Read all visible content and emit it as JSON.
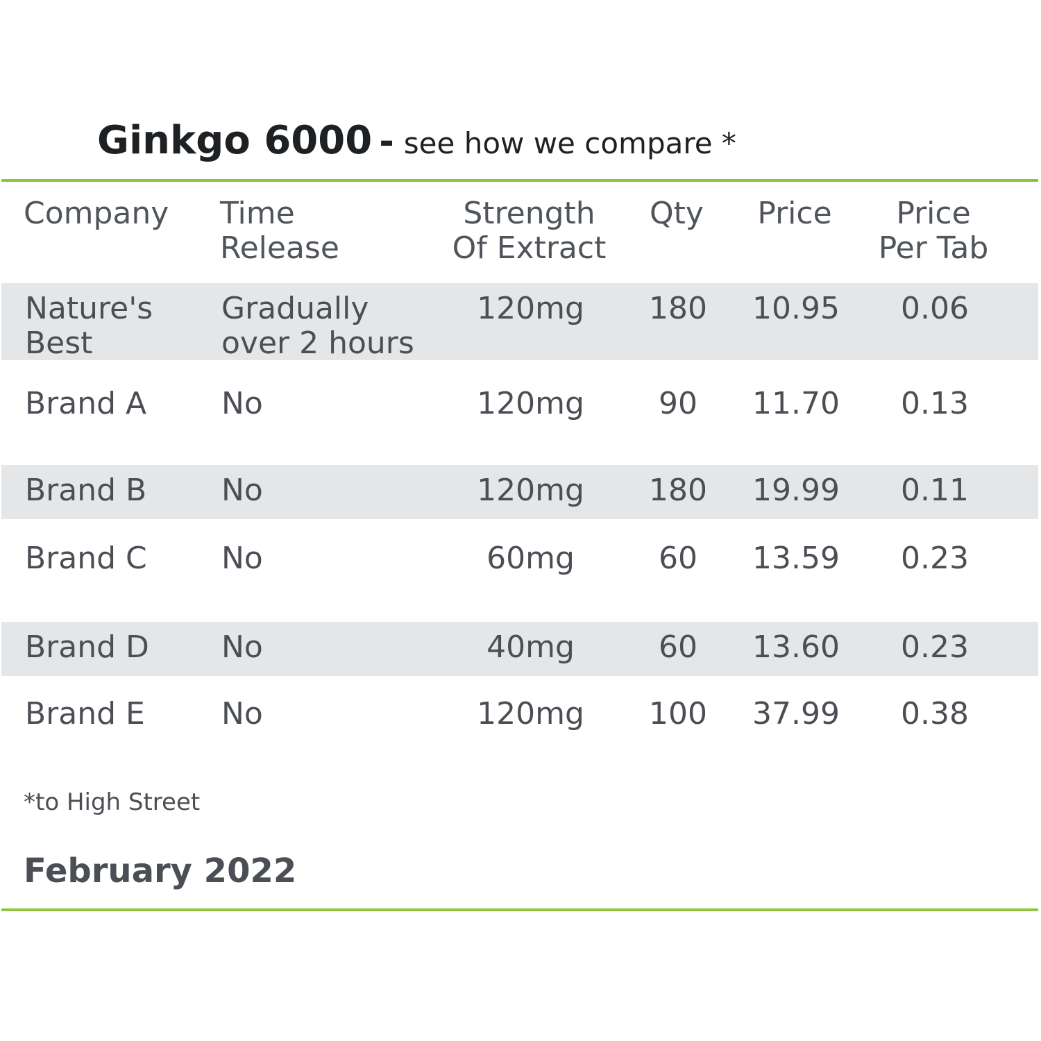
{
  "title": {
    "main": "Ginkgo 6000",
    "separator": "-",
    "subtitle": "see how we compare *"
  },
  "chart_data": {
    "type": "table",
    "columns": [
      "Company",
      "Time Release",
      "Strength Of Extract",
      "Qty",
      "Price",
      "Price Per Tab"
    ],
    "header_lines": [
      [
        "Company"
      ],
      [
        "Time",
        "Release"
      ],
      [
        "Strength",
        "Of Extract"
      ],
      [
        "Qty"
      ],
      [
        "Price"
      ],
      [
        "Price",
        "Per Tab"
      ]
    ],
    "rows": [
      {
        "company": [
          "Nature's",
          "Best"
        ],
        "release": [
          "Gradually",
          "over 2 hours"
        ],
        "strength": "120mg",
        "qty": "180",
        "price": "10.95",
        "ppt": "0.06"
      },
      {
        "company": [
          "Brand A"
        ],
        "release": [
          "No"
        ],
        "strength": "120mg",
        "qty": "90",
        "price": "11.70",
        "ppt": "0.13"
      },
      {
        "company": [
          "Brand B"
        ],
        "release": [
          "No"
        ],
        "strength": "120mg",
        "qty": "180",
        "price": "19.99",
        "ppt": "0.11"
      },
      {
        "company": [
          "Brand C"
        ],
        "release": [
          "No"
        ],
        "strength": "60mg",
        "qty": "60",
        "price": "13.59",
        "ppt": "0.23"
      },
      {
        "company": [
          "Brand D"
        ],
        "release": [
          "No"
        ],
        "strength": "40mg",
        "qty": "60",
        "price": "13.60",
        "ppt": "0.23"
      },
      {
        "company": [
          "Brand E"
        ],
        "release": [
          "No"
        ],
        "strength": "120mg",
        "qty": "100",
        "price": "37.99",
        "ppt": "0.38"
      }
    ],
    "shaded_rows": [
      0,
      2,
      4
    ],
    "colors": {
      "accent_rule": "#8cc63f",
      "row_shade": "#e5e6e8",
      "text": "#4b4f55",
      "title": "#1e2124"
    }
  },
  "footnote": "*to High Street",
  "date": "February 2022"
}
